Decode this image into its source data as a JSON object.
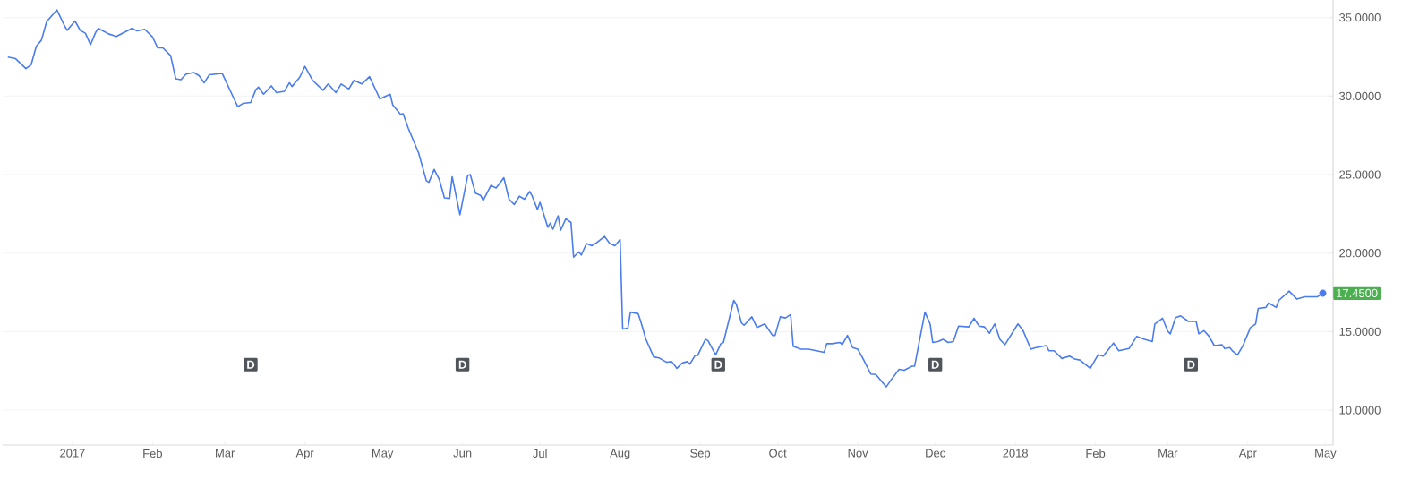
{
  "chart_data": {
    "type": "line",
    "xlim": [
      "2016-12-05",
      "2018-05-04"
    ],
    "ylim": [
      7.78,
      36.12
    ],
    "xticks": [
      {
        "value": "2017-01-01",
        "label": "2017"
      },
      {
        "value": "2017-02-01",
        "label": "Feb"
      },
      {
        "value": "2017-03-01",
        "label": "Mar"
      },
      {
        "value": "2017-04-01",
        "label": "Apr"
      },
      {
        "value": "2017-05-01",
        "label": "May"
      },
      {
        "value": "2017-06-01",
        "label": "Jun"
      },
      {
        "value": "2017-07-01",
        "label": "Jul"
      },
      {
        "value": "2017-08-01",
        "label": "Aug"
      },
      {
        "value": "2017-09-01",
        "label": "Sep"
      },
      {
        "value": "2017-10-01",
        "label": "Oct"
      },
      {
        "value": "2017-11-01",
        "label": "Nov"
      },
      {
        "value": "2017-12-01",
        "label": "Dec"
      },
      {
        "value": "2018-01-01",
        "label": "2018"
      },
      {
        "value": "2018-02-01",
        "label": "Feb"
      },
      {
        "value": "2018-03-01",
        "label": "Mar"
      },
      {
        "value": "2018-04-01",
        "label": "Apr"
      },
      {
        "value": "2018-05-01",
        "label": "May"
      }
    ],
    "yticks": [
      {
        "value": 10,
        "label": "10.0000"
      },
      {
        "value": 15,
        "label": "15.0000"
      },
      {
        "value": 20,
        "label": "20.0000"
      },
      {
        "value": 25,
        "label": "25.0000"
      },
      {
        "value": 30,
        "label": "30.0000"
      },
      {
        "value": 35,
        "label": "35.0000"
      }
    ],
    "grid": "y",
    "marker": "none",
    "line_style": "solid",
    "series": [
      {
        "color": "#4a7cf0",
        "x": [
          "2016-12-07",
          "2016-12-10",
          "2016-12-14",
          "2016-12-16",
          "2016-12-18",
          "2016-12-20",
          "2016-12-22",
          "2016-12-26",
          "2016-12-29",
          "2016-12-30",
          "2017-01-02",
          "2017-01-04",
          "2017-01-06",
          "2017-01-08",
          "2017-01-10",
          "2017-01-11",
          "2017-01-15",
          "2017-01-18",
          "2017-01-24",
          "2017-01-26",
          "2017-01-29",
          "2017-02-01",
          "2017-02-03",
          "2017-02-05",
          "2017-02-08",
          "2017-02-10",
          "2017-02-12",
          "2017-02-14",
          "2017-02-17",
          "2017-02-19",
          "2017-02-21",
          "2017-02-23",
          "2017-02-28",
          "2017-03-04",
          "2017-03-06",
          "2017-03-08",
          "2017-03-11",
          "2017-03-13",
          "2017-03-14",
          "2017-03-16",
          "2017-03-19",
          "2017-03-21",
          "2017-03-24",
          "2017-03-26",
          "2017-03-27",
          "2017-03-30",
          "2017-04-01",
          "2017-04-04",
          "2017-04-08",
          "2017-04-10",
          "2017-04-13",
          "2017-04-15",
          "2017-04-18",
          "2017-04-20",
          "2017-04-23",
          "2017-04-26",
          "2017-04-30",
          "2017-05-04",
          "2017-05-05",
          "2017-05-08",
          "2017-05-09",
          "2017-05-11",
          "2017-05-15",
          "2017-05-18",
          "2017-05-19",
          "2017-05-21",
          "2017-05-23",
          "2017-05-25",
          "2017-05-27",
          "2017-05-28",
          "2017-05-31",
          "2017-06-03",
          "2017-06-04",
          "2017-06-06",
          "2017-06-08",
          "2017-06-09",
          "2017-06-12",
          "2017-06-14",
          "2017-06-17",
          "2017-06-19",
          "2017-06-21",
          "2017-06-23",
          "2017-06-25",
          "2017-06-27",
          "2017-06-28",
          "2017-06-30",
          "2017-07-01",
          "2017-07-04",
          "2017-07-05",
          "2017-07-06",
          "2017-07-08",
          "2017-07-09",
          "2017-07-11",
          "2017-07-13",
          "2017-07-14",
          "2017-07-16",
          "2017-07-17",
          "2017-07-19",
          "2017-07-21",
          "2017-07-23",
          "2017-07-26",
          "2017-07-28",
          "2017-07-30",
          "2017-08-01",
          "2017-08-02",
          "2017-08-04",
          "2017-08-05",
          "2017-08-08",
          "2017-08-09",
          "2017-08-11",
          "2017-08-14",
          "2017-08-16",
          "2017-08-19",
          "2017-08-21",
          "2017-08-23",
          "2017-08-25",
          "2017-08-27",
          "2017-08-28",
          "2017-08-30",
          "2017-08-31",
          "2017-09-03",
          "2017-09-04",
          "2017-09-07",
          "2017-09-09",
          "2017-09-10",
          "2017-09-14",
          "2017-09-15",
          "2017-09-17",
          "2017-09-18",
          "2017-09-21",
          "2017-09-23",
          "2017-09-26",
          "2017-09-29",
          "2017-09-30",
          "2017-10-02",
          "2017-10-04",
          "2017-10-06",
          "2017-10-07",
          "2017-10-10",
          "2017-10-13",
          "2017-10-19",
          "2017-10-20",
          "2017-10-22",
          "2017-10-25",
          "2017-10-26",
          "2017-10-28",
          "2017-10-30",
          "2017-11-01",
          "2017-11-03",
          "2017-11-06",
          "2017-11-08",
          "2017-11-12",
          "2017-11-14",
          "2017-11-17",
          "2017-11-19",
          "2017-11-22",
          "2017-11-23",
          "2017-11-27",
          "2017-11-29",
          "2017-11-30",
          "2017-12-02",
          "2017-12-04",
          "2017-12-06",
          "2017-12-08",
          "2017-12-10",
          "2017-12-14",
          "2017-12-16",
          "2017-12-18",
          "2017-12-20",
          "2017-12-22",
          "2017-12-24",
          "2017-12-26",
          "2017-12-28",
          "2018-01-02",
          "2018-01-04",
          "2018-01-07",
          "2018-01-09",
          "2018-01-13",
          "2018-01-14",
          "2018-01-16",
          "2018-01-19",
          "2018-01-22",
          "2018-01-24",
          "2018-01-26",
          "2018-01-30",
          "2018-02-02",
          "2018-02-04",
          "2018-02-08",
          "2018-02-10",
          "2018-02-14",
          "2018-02-17",
          "2018-02-20",
          "2018-02-23",
          "2018-02-24",
          "2018-02-27",
          "2018-03-01",
          "2018-03-02",
          "2018-03-04",
          "2018-03-06",
          "2018-03-09",
          "2018-03-12",
          "2018-03-13",
          "2018-03-15",
          "2018-03-17",
          "2018-03-19",
          "2018-03-22",
          "2018-03-23",
          "2018-03-25",
          "2018-03-26",
          "2018-03-28",
          "2018-03-30",
          "2018-04-02",
          "2018-04-04",
          "2018-04-05",
          "2018-04-08",
          "2018-04-09",
          "2018-04-12",
          "2018-04-13",
          "2018-04-17",
          "2018-04-20",
          "2018-04-23",
          "2018-04-28",
          "2018-04-30"
        ],
        "values": [
          32.48,
          32.38,
          31.75,
          31.99,
          33.17,
          33.56,
          34.74,
          35.49,
          34.45,
          34.19,
          34.78,
          34.19,
          34.0,
          33.27,
          34.06,
          34.31,
          33.96,
          33.8,
          34.31,
          34.15,
          34.25,
          33.76,
          33.07,
          33.07,
          32.58,
          31.1,
          31.04,
          31.4,
          31.5,
          31.3,
          30.85,
          31.36,
          31.44,
          30.02,
          29.33,
          29.53,
          29.59,
          30.41,
          30.57,
          30.12,
          30.65,
          30.22,
          30.3,
          30.85,
          30.61,
          31.2,
          31.89,
          31.0,
          30.37,
          30.77,
          30.22,
          30.77,
          30.45,
          31.0,
          30.77,
          31.24,
          29.82,
          30.12,
          29.43,
          28.84,
          28.88,
          27.95,
          26.38,
          24.61,
          24.51,
          25.33,
          24.7,
          23.52,
          23.48,
          24.86,
          22.44,
          24.94,
          25.0,
          23.82,
          23.68,
          23.35,
          24.31,
          24.15,
          24.8,
          23.43,
          23.09,
          23.62,
          23.43,
          23.92,
          23.62,
          22.78,
          23.23,
          21.65,
          21.91,
          21.52,
          22.38,
          21.46,
          22.19,
          21.95,
          19.74,
          20.08,
          19.88,
          20.61,
          20.47,
          20.67,
          21.06,
          20.61,
          20.47,
          20.87,
          15.16,
          15.22,
          16.24,
          16.14,
          15.65,
          14.51,
          13.39,
          13.33,
          13.05,
          13.09,
          12.66,
          13.0,
          13.09,
          12.93,
          13.48,
          13.48,
          14.51,
          14.43,
          13.52,
          14.23,
          14.31,
          16.99,
          16.73,
          15.55,
          15.41,
          15.94,
          15.26,
          15.49,
          14.76,
          14.76,
          15.94,
          15.87,
          16.08,
          14.07,
          13.88,
          13.88,
          13.68,
          14.23,
          14.23,
          14.31,
          14.17,
          14.76,
          13.98,
          13.88,
          13.29,
          12.3,
          12.27,
          11.48,
          11.95,
          12.6,
          12.54,
          12.8,
          12.8,
          16.24,
          15.49,
          14.31,
          14.37,
          14.51,
          14.31,
          14.37,
          15.35,
          15.3,
          15.85,
          15.35,
          15.3,
          14.9,
          15.49,
          14.51,
          14.17,
          15.49,
          15.06,
          13.88,
          13.98,
          14.11,
          13.78,
          13.78,
          13.29,
          13.44,
          13.25,
          13.19,
          12.66,
          13.52,
          13.44,
          14.27,
          13.78,
          13.92,
          14.7,
          14.51,
          14.37,
          15.49,
          15.85,
          15.02,
          14.86,
          15.89,
          16.0,
          15.65,
          15.65,
          14.86,
          15.06,
          14.7,
          14.11,
          14.17,
          13.92,
          13.98,
          13.78,
          13.52,
          14.07,
          15.26,
          15.49,
          16.48,
          16.54,
          16.83,
          16.54,
          16.99,
          17.58,
          17.07,
          17.22,
          17.22,
          17.45
        ]
      }
    ],
    "annotations": [
      {
        "text": "D",
        "x": "2017-03-11",
        "y": 12.9
      },
      {
        "text": "D",
        "x": "2017-06-01",
        "y": 12.9
      },
      {
        "text": "D",
        "x": "2017-09-08",
        "y": 12.9
      },
      {
        "text": "D",
        "x": "2017-12-01",
        "y": 12.9
      },
      {
        "text": "D",
        "x": "2018-03-10",
        "y": 12.9
      },
      {
        "text": "17.4500",
        "x": "2018-04-30",
        "y": 17.45
      }
    ]
  }
}
